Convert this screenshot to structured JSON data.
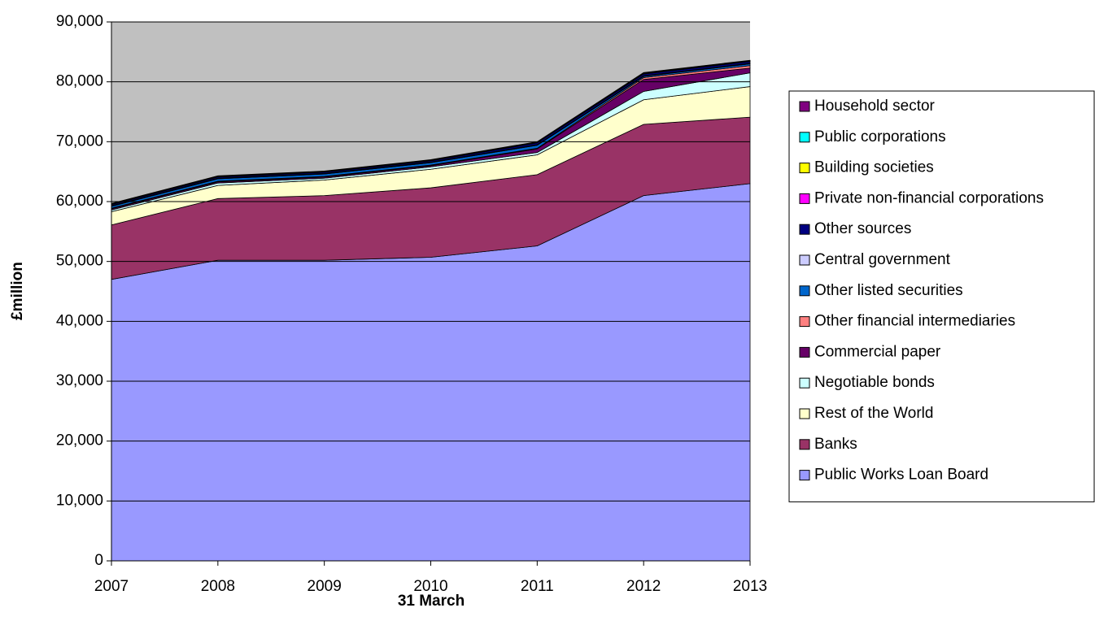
{
  "chart_data": {
    "type": "area",
    "stacked": true,
    "x_label": "31 March",
    "y_label": "£million",
    "categories": [
      "2007",
      "2008",
      "2009",
      "2010",
      "2011",
      "2012",
      "2013"
    ],
    "ylim": [
      0,
      90000
    ],
    "yticks": [
      0,
      {
        "value": 10000,
        "label": "10,000"
      },
      {
        "value": 20000,
        "label": "20,000"
      },
      {
        "value": 30000,
        "label": "30,000"
      },
      {
        "value": 40000,
        "label": "40,000"
      },
      {
        "value": 50000,
        "label": "50,000"
      },
      {
        "value": 60000,
        "label": "60,000"
      },
      {
        "value": 70000,
        "label": "70,000"
      },
      {
        "value": 80000,
        "label": "80,000"
      },
      {
        "value": 90000,
        "label": "90,000"
      }
    ],
    "grid": true,
    "plot_background": "#c0c0c0",
    "legend": "right",
    "series": [
      {
        "name": "Public Works Loan Board",
        "color": "#9999ff",
        "values": [
          47000,
          50200,
          50200,
          50700,
          52600,
          61000,
          63000
        ]
      },
      {
        "name": "Banks",
        "color": "#993366",
        "values": [
          9100,
          10300,
          10800,
          11600,
          11900,
          11900,
          11100
        ]
      },
      {
        "name": "Rest of the World",
        "color": "#ffffcc",
        "values": [
          2200,
          2200,
          2600,
          3100,
          3300,
          4100,
          5100
        ]
      },
      {
        "name": "Negotiable bonds",
        "color": "#ccffff",
        "values": [
          300,
          400,
          300,
          400,
          400,
          1400,
          2300
        ]
      },
      {
        "name": "Commercial paper",
        "color": "#660066",
        "values": [
          200,
          200,
          200,
          200,
          600,
          2000,
          800
        ]
      },
      {
        "name": "Other financial intermediaries",
        "color": "#ff8080",
        "values": [
          100,
          100,
          100,
          100,
          100,
          300,
          400
        ]
      },
      {
        "name": "Other listed securities",
        "color": "#0066cc",
        "values": [
          300,
          400,
          400,
          400,
          500,
          200,
          300
        ]
      },
      {
        "name": "Central government",
        "color": "#ccccff",
        "values": [
          100,
          100,
          100,
          100,
          100,
          100,
          100
        ]
      },
      {
        "name": "Other sources",
        "color": "#000080",
        "values": [
          200,
          200,
          200,
          200,
          300,
          300,
          300
        ]
      },
      {
        "name": "Private non-financial corporations",
        "color": "#ff00ff",
        "values": [
          50,
          50,
          50,
          50,
          50,
          50,
          50
        ]
      },
      {
        "name": "Building societies",
        "color": "#ffff00",
        "values": [
          50,
          50,
          50,
          50,
          50,
          100,
          50
        ]
      },
      {
        "name": "Public corporations",
        "color": "#00ffff",
        "values": [
          50,
          50,
          50,
          50,
          50,
          50,
          50
        ]
      },
      {
        "name": "Household sector",
        "color": "#800080",
        "values": [
          50,
          50,
          50,
          50,
          50,
          50,
          50
        ]
      }
    ]
  }
}
